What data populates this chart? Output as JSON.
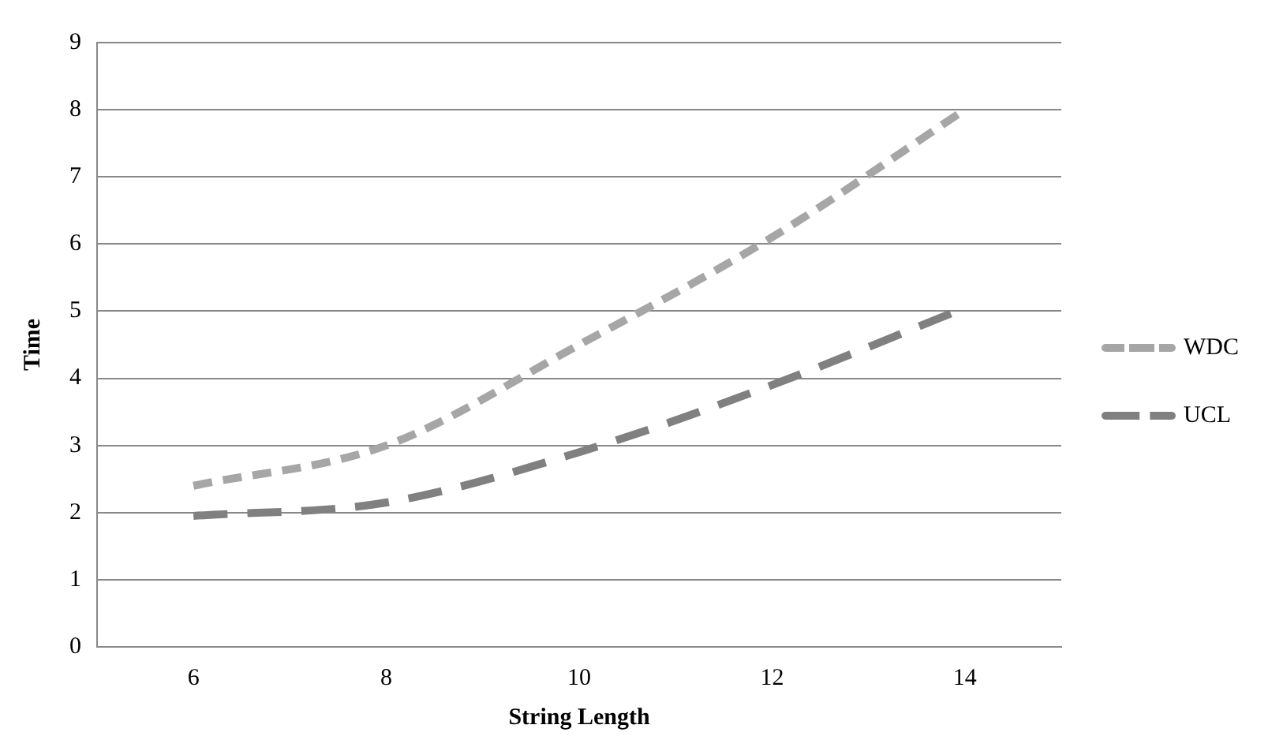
{
  "chart_data": {
    "type": "line",
    "xlabel": "String Length",
    "ylabel": "Time",
    "categories": [
      "6",
      "8",
      "10",
      "12",
      "14"
    ],
    "series": [
      {
        "name": "WDC",
        "color": "#a6a6a6",
        "values": [
          2.4,
          3.0,
          4.5,
          6.1,
          8.0
        ]
      },
      {
        "name": "UCL",
        "color": "#808080",
        "values": [
          1.95,
          2.15,
          2.9,
          3.9,
          5.05
        ]
      }
    ],
    "ylim": [
      0,
      9
    ],
    "yticks": [
      0,
      1,
      2,
      3,
      4,
      5,
      6,
      7,
      8,
      9
    ],
    "grid": "y",
    "legend": "right",
    "marker": "none",
    "line_style": "dashed"
  }
}
